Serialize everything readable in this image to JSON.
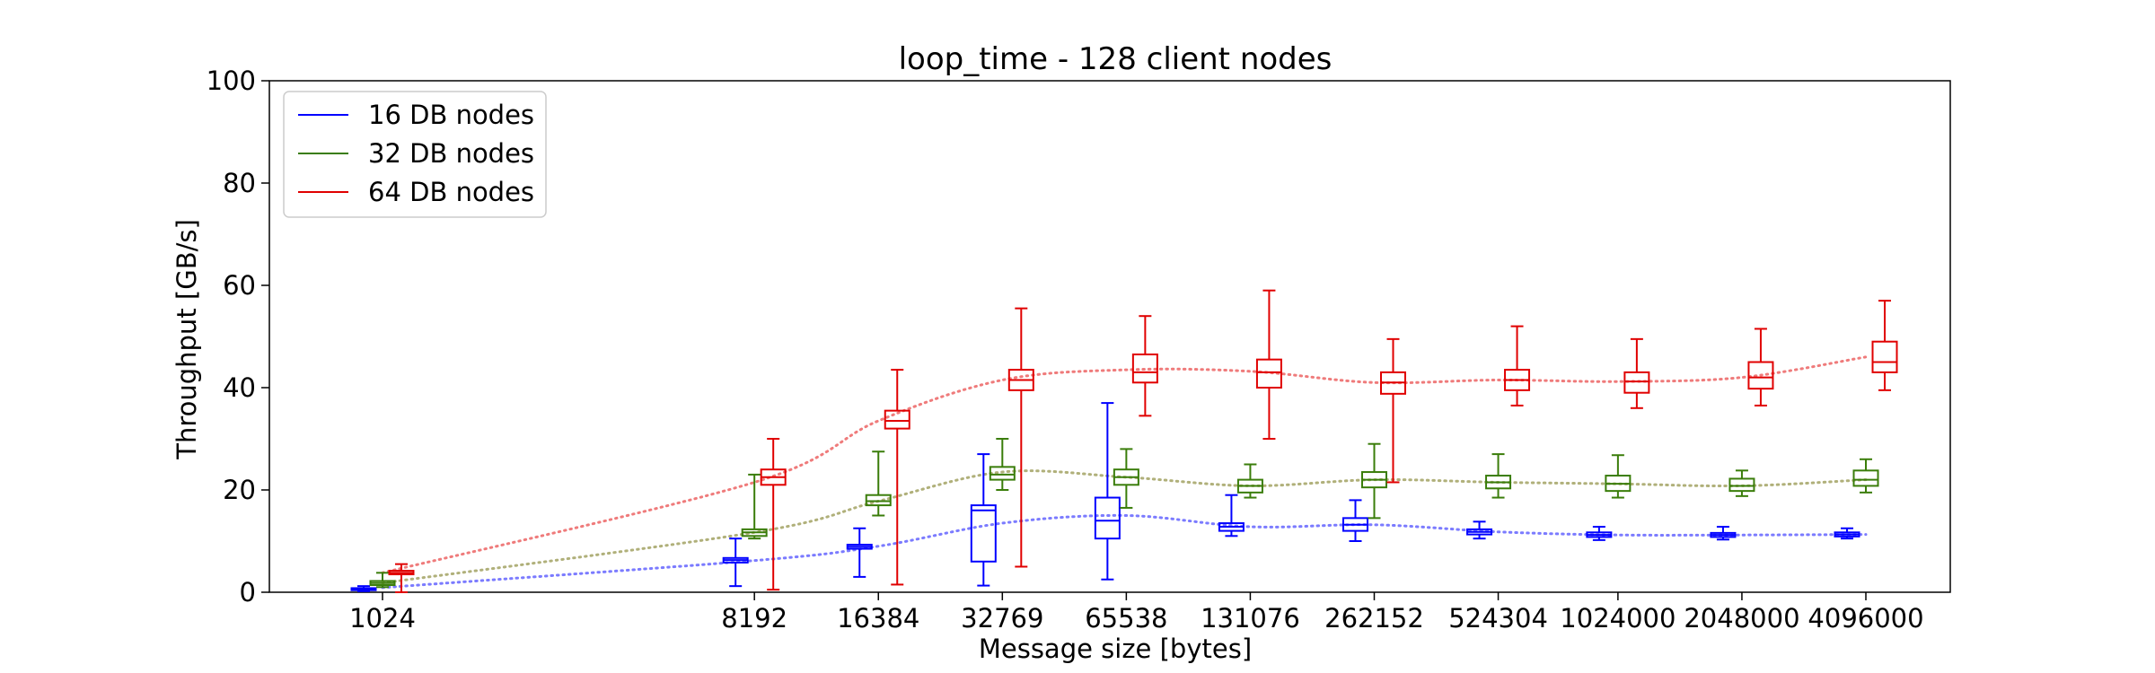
{
  "chart_data": {
    "type": "box",
    "title": "loop_time - 128 client nodes",
    "xlabel": "Message size [bytes]",
    "ylabel": "Throughput [GB/s]",
    "ylim": [
      0,
      100
    ],
    "yticks": [
      "0",
      "20",
      "40",
      "60",
      "80",
      "100"
    ],
    "x_scale": "log",
    "categories": [
      "1024",
      "8192",
      "16384",
      "32769",
      "65538",
      "131076",
      "262152",
      "524304",
      "1024000",
      "2048000",
      "4096000"
    ],
    "legend": {
      "placement": "top-left"
    },
    "series": [
      {
        "name": "16 DB nodes",
        "color": "#0000ff",
        "trend_color": "#7b7bff",
        "boxes": [
          {
            "x": "1024",
            "whislo": 0.2,
            "q1": 0.4,
            "med": 0.6,
            "q3": 0.8,
            "whishi": 1.2
          },
          {
            "x": "8192",
            "whislo": 1.2,
            "q1": 5.8,
            "med": 6.3,
            "q3": 6.7,
            "whishi": 10.5
          },
          {
            "x": "16384",
            "whislo": 3.0,
            "q1": 8.5,
            "med": 8.9,
            "q3": 9.3,
            "whishi": 12.5
          },
          {
            "x": "32769",
            "whislo": 1.3,
            "q1": 6.0,
            "med": 16.0,
            "q3": 17.0,
            "whishi": 27.0
          },
          {
            "x": "65538",
            "whislo": 2.5,
            "q1": 10.5,
            "med": 14.0,
            "q3": 18.5,
            "whishi": 37.0
          },
          {
            "x": "131076",
            "whislo": 11.0,
            "q1": 12.0,
            "med": 12.8,
            "q3": 13.5,
            "whishi": 19.0
          },
          {
            "x": "262152",
            "whislo": 10.0,
            "q1": 12.0,
            "med": 13.2,
            "q3": 14.5,
            "whishi": 18.0
          },
          {
            "x": "524304",
            "whislo": 10.5,
            "q1": 11.3,
            "med": 11.8,
            "q3": 12.3,
            "whishi": 13.8
          },
          {
            "x": "1024000",
            "whislo": 10.2,
            "q1": 10.8,
            "med": 11.2,
            "q3": 11.7,
            "whishi": 12.8
          },
          {
            "x": "2048000",
            "whislo": 10.3,
            "q1": 10.8,
            "med": 11.2,
            "q3": 11.6,
            "whishi": 12.8
          },
          {
            "x": "4096000",
            "whislo": 10.5,
            "q1": 10.9,
            "med": 11.3,
            "q3": 11.7,
            "whishi": 12.5
          }
        ],
        "trend": [
          0.9,
          6.2,
          9.0,
          13.5,
          15.0,
          12.8,
          13.2,
          11.8,
          11.2,
          11.2,
          11.3
        ]
      },
      {
        "name": "32 DB nodes",
        "color": "#3a7d0a",
        "trend_color": "#b0b07a",
        "boxes": [
          {
            "x": "1024",
            "whislo": 1.0,
            "q1": 1.4,
            "med": 1.8,
            "q3": 2.2,
            "whishi": 3.8
          },
          {
            "x": "8192",
            "whislo": 10.5,
            "q1": 11.0,
            "med": 11.7,
            "q3": 12.3,
            "whishi": 23.0
          },
          {
            "x": "16384",
            "whislo": 15.0,
            "q1": 17.0,
            "med": 17.8,
            "q3": 19.0,
            "whishi": 27.5
          },
          {
            "x": "32769",
            "whislo": 20.0,
            "q1": 22.0,
            "med": 23.0,
            "q3": 24.5,
            "whishi": 30.0
          },
          {
            "x": "65538",
            "whislo": 16.5,
            "q1": 21.0,
            "med": 22.5,
            "q3": 24.0,
            "whishi": 28.0
          },
          {
            "x": "131076",
            "whislo": 18.5,
            "q1": 19.5,
            "med": 20.8,
            "q3": 22.0,
            "whishi": 25.0
          },
          {
            "x": "262152",
            "whislo": 14.5,
            "q1": 20.5,
            "med": 22.0,
            "q3": 23.5,
            "whishi": 29.0
          },
          {
            "x": "524304",
            "whislo": 18.5,
            "q1": 20.3,
            "med": 21.5,
            "q3": 22.8,
            "whishi": 27.0
          },
          {
            "x": "1024000",
            "whislo": 18.5,
            "q1": 19.8,
            "med": 21.2,
            "q3": 22.8,
            "whishi": 26.8
          },
          {
            "x": "2048000",
            "whislo": 18.8,
            "q1": 19.8,
            "med": 20.8,
            "q3": 22.2,
            "whishi": 23.8
          },
          {
            "x": "4096000",
            "whislo": 19.5,
            "q1": 20.8,
            "med": 22.0,
            "q3": 23.8,
            "whishi": 26.0
          }
        ],
        "trend": [
          1.8,
          11.7,
          17.8,
          23.5,
          22.5,
          20.8,
          22.0,
          21.5,
          21.2,
          20.8,
          22.0
        ]
      },
      {
        "name": "64 DB nodes",
        "color": "#e00000",
        "trend_color": "#ef7b7b",
        "boxes": [
          {
            "x": "1024",
            "whislo": 0.0,
            "q1": 3.5,
            "med": 3.8,
            "q3": 4.2,
            "whishi": 5.5
          },
          {
            "x": "8192",
            "whislo": 0.5,
            "q1": 21.0,
            "med": 22.5,
            "q3": 24.0,
            "whishi": 30.0
          },
          {
            "x": "16384",
            "whislo": 1.5,
            "q1": 32.0,
            "med": 33.5,
            "q3": 35.5,
            "whishi": 43.5
          },
          {
            "x": "32769",
            "whislo": 5.0,
            "q1": 39.5,
            "med": 41.5,
            "q3": 43.5,
            "whishi": 55.5
          },
          {
            "x": "65538",
            "whislo": 34.5,
            "q1": 41.0,
            "med": 43.0,
            "q3": 46.5,
            "whishi": 54.0
          },
          {
            "x": "131076",
            "whislo": 30.0,
            "q1": 40.0,
            "med": 43.0,
            "q3": 45.5,
            "whishi": 59.0
          },
          {
            "x": "262152",
            "whislo": 21.5,
            "q1": 38.8,
            "med": 41.0,
            "q3": 43.0,
            "whishi": 49.5
          },
          {
            "x": "524304",
            "whislo": 36.5,
            "q1": 39.5,
            "med": 41.5,
            "q3": 43.5,
            "whishi": 52.0
          },
          {
            "x": "1024000",
            "whislo": 36.0,
            "q1": 39.0,
            "med": 41.2,
            "q3": 43.0,
            "whishi": 49.5
          },
          {
            "x": "2048000",
            "whislo": 36.5,
            "q1": 39.8,
            "med": 42.0,
            "q3": 45.0,
            "whishi": 51.5
          },
          {
            "x": "4096000",
            "whislo": 39.5,
            "q1": 43.0,
            "med": 45.0,
            "q3": 49.0,
            "whishi": 57.0
          }
        ],
        "trend": [
          3.8,
          21.5,
          33.5,
          41.5,
          43.5,
          43.2,
          41.0,
          41.5,
          41.2,
          42.0,
          46.0
        ]
      }
    ]
  }
}
